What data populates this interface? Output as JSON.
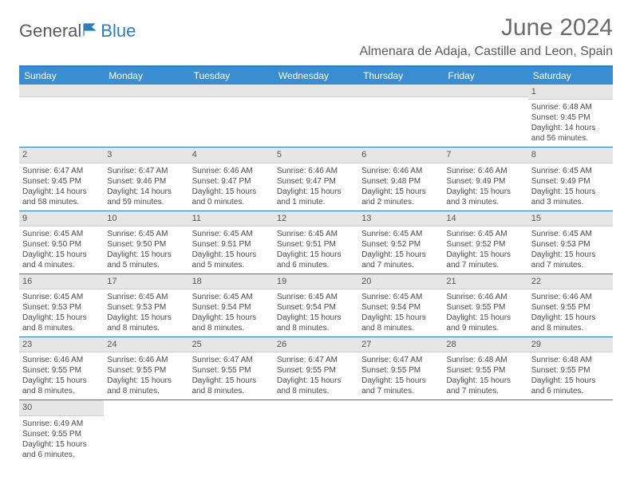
{
  "logo": {
    "text1": "General",
    "text2": "Blue"
  },
  "title": "June 2024",
  "location": "Almenara de Adaja, Castille and Leon, Spain",
  "header_bg": "#3a8dd0",
  "rule_color": "#2a7dc0",
  "weekdays": [
    "Sunday",
    "Monday",
    "Tuesday",
    "Wednesday",
    "Thursday",
    "Friday",
    "Saturday"
  ],
  "weeks": [
    [
      null,
      null,
      null,
      null,
      null,
      null,
      {
        "n": "1",
        "sr": "6:48 AM",
        "ss": "9:45 PM",
        "dl": "14 hours and 56 minutes."
      }
    ],
    [
      {
        "n": "2",
        "sr": "6:47 AM",
        "ss": "9:45 PM",
        "dl": "14 hours and 58 minutes."
      },
      {
        "n": "3",
        "sr": "6:47 AM",
        "ss": "9:46 PM",
        "dl": "14 hours and 59 minutes."
      },
      {
        "n": "4",
        "sr": "6:46 AM",
        "ss": "9:47 PM",
        "dl": "15 hours and 0 minutes."
      },
      {
        "n": "5",
        "sr": "6:46 AM",
        "ss": "9:47 PM",
        "dl": "15 hours and 1 minute."
      },
      {
        "n": "6",
        "sr": "6:46 AM",
        "ss": "9:48 PM",
        "dl": "15 hours and 2 minutes."
      },
      {
        "n": "7",
        "sr": "6:46 AM",
        "ss": "9:49 PM",
        "dl": "15 hours and 3 minutes."
      },
      {
        "n": "8",
        "sr": "6:45 AM",
        "ss": "9:49 PM",
        "dl": "15 hours and 3 minutes."
      }
    ],
    [
      {
        "n": "9",
        "sr": "6:45 AM",
        "ss": "9:50 PM",
        "dl": "15 hours and 4 minutes."
      },
      {
        "n": "10",
        "sr": "6:45 AM",
        "ss": "9:50 PM",
        "dl": "15 hours and 5 minutes."
      },
      {
        "n": "11",
        "sr": "6:45 AM",
        "ss": "9:51 PM",
        "dl": "15 hours and 5 minutes."
      },
      {
        "n": "12",
        "sr": "6:45 AM",
        "ss": "9:51 PM",
        "dl": "15 hours and 6 minutes."
      },
      {
        "n": "13",
        "sr": "6:45 AM",
        "ss": "9:52 PM",
        "dl": "15 hours and 7 minutes."
      },
      {
        "n": "14",
        "sr": "6:45 AM",
        "ss": "9:52 PM",
        "dl": "15 hours and 7 minutes."
      },
      {
        "n": "15",
        "sr": "6:45 AM",
        "ss": "9:53 PM",
        "dl": "15 hours and 7 minutes."
      }
    ],
    [
      {
        "n": "16",
        "sr": "6:45 AM",
        "ss": "9:53 PM",
        "dl": "15 hours and 8 minutes."
      },
      {
        "n": "17",
        "sr": "6:45 AM",
        "ss": "9:53 PM",
        "dl": "15 hours and 8 minutes."
      },
      {
        "n": "18",
        "sr": "6:45 AM",
        "ss": "9:54 PM",
        "dl": "15 hours and 8 minutes."
      },
      {
        "n": "19",
        "sr": "6:45 AM",
        "ss": "9:54 PM",
        "dl": "15 hours and 8 minutes."
      },
      {
        "n": "20",
        "sr": "6:45 AM",
        "ss": "9:54 PM",
        "dl": "15 hours and 8 minutes."
      },
      {
        "n": "21",
        "sr": "6:46 AM",
        "ss": "9:55 PM",
        "dl": "15 hours and 9 minutes."
      },
      {
        "n": "22",
        "sr": "6:46 AM",
        "ss": "9:55 PM",
        "dl": "15 hours and 8 minutes."
      }
    ],
    [
      {
        "n": "23",
        "sr": "6:46 AM",
        "ss": "9:55 PM",
        "dl": "15 hours and 8 minutes."
      },
      {
        "n": "24",
        "sr": "6:46 AM",
        "ss": "9:55 PM",
        "dl": "15 hours and 8 minutes."
      },
      {
        "n": "25",
        "sr": "6:47 AM",
        "ss": "9:55 PM",
        "dl": "15 hours and 8 minutes."
      },
      {
        "n": "26",
        "sr": "6:47 AM",
        "ss": "9:55 PM",
        "dl": "15 hours and 8 minutes."
      },
      {
        "n": "27",
        "sr": "6:47 AM",
        "ss": "9:55 PM",
        "dl": "15 hours and 7 minutes."
      },
      {
        "n": "28",
        "sr": "6:48 AM",
        "ss": "9:55 PM",
        "dl": "15 hours and 7 minutes."
      },
      {
        "n": "29",
        "sr": "6:48 AM",
        "ss": "9:55 PM",
        "dl": "15 hours and 6 minutes."
      }
    ],
    [
      {
        "n": "30",
        "sr": "6:49 AM",
        "ss": "9:55 PM",
        "dl": "15 hours and 6 minutes."
      },
      null,
      null,
      null,
      null,
      null,
      null
    ]
  ],
  "labels": {
    "sunrise": "Sunrise: ",
    "sunset": "Sunset: ",
    "daylight": "Daylight: "
  }
}
